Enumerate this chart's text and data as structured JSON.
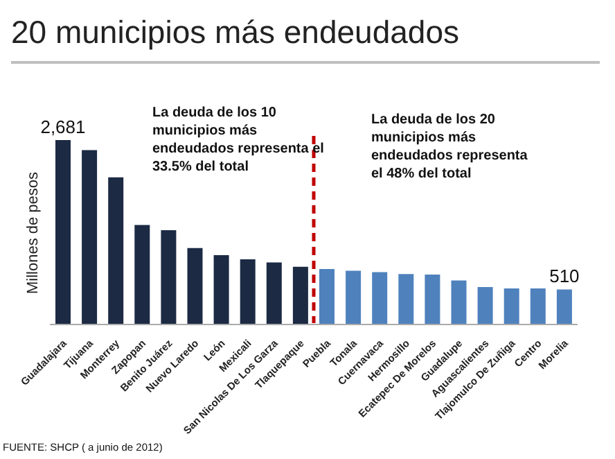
{
  "chart_data": {
    "type": "bar",
    "title": "20 municipios más endeudados",
    "ylabel": "Millones de pesos",
    "categories": [
      "Guadalajara",
      "Tijuana",
      "Monterrey",
      "Zapopan",
      "Benito Juárez",
      "Nuevo Laredo",
      "León",
      "Mexicali",
      "San Nicolas De Los Garza",
      "Tlaquepaque",
      "Puebla",
      "Tonala",
      "Cuernavaca",
      "Hermosillo",
      "Ecatepec De Morelos",
      "Guadalupe",
      "Aguascalientes",
      "Tlajomulco De Zuñiga",
      "Centro",
      "Morelia"
    ],
    "values": [
      2681,
      2535,
      2140,
      1446,
      1371,
      1110,
      1008,
      948,
      901,
      840,
      806,
      780,
      760,
      732,
      726,
      639,
      544,
      524,
      524,
      510
    ],
    "colors": [
      "#1c2a44",
      "#1c2a44",
      "#1c2a44",
      "#1c2a44",
      "#1c2a44",
      "#1c2a44",
      "#1c2a44",
      "#1c2a44",
      "#1c2a44",
      "#1c2a44",
      "#4f81bd",
      "#4f81bd",
      "#4f81bd",
      "#4f81bd",
      "#4f81bd",
      "#4f81bd",
      "#4f81bd",
      "#4f81bd",
      "#4f81bd",
      "#4f81bd"
    ],
    "value_labels": [
      "2,681",
      null,
      null,
      null,
      null,
      null,
      null,
      null,
      null,
      null,
      null,
      null,
      null,
      null,
      null,
      null,
      null,
      null,
      null,
      "510"
    ],
    "annotations": [
      "La deuda de los 10 municipios más endeudados representa  el 33.5% del total",
      "La deuda de los 20 municipios más endeudados representa  el 48% del total",
      "FUENTE: SHCP ( a junio de 2012)"
    ],
    "grid": false,
    "legend": false
  }
}
